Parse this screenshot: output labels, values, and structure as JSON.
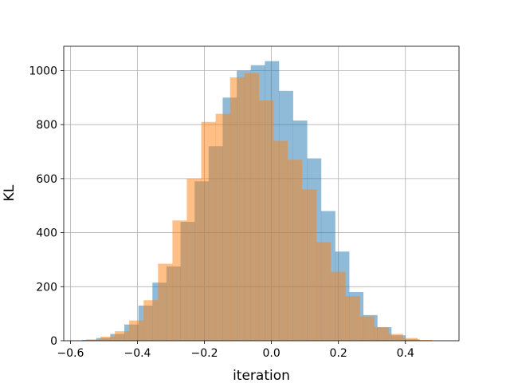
{
  "chart_data": {
    "type": "bar",
    "subtype": "overlapping-histogram",
    "title": "",
    "xlabel": "iteration",
    "ylabel": "KL",
    "xlim": [
      -0.62,
      0.56
    ],
    "ylim": [
      0,
      1090
    ],
    "xticks": [
      -0.6,
      -0.4,
      -0.2,
      0.0,
      0.2,
      0.4
    ],
    "xtick_labels": [
      "−0.6",
      "−0.4",
      "−0.2",
      "0.0",
      "0.2",
      "0.4"
    ],
    "yticks": [
      0,
      200,
      400,
      600,
      800,
      1000
    ],
    "ytick_labels": [
      "0",
      "200",
      "400",
      "600",
      "800",
      "1000"
    ],
    "grid": true,
    "legend": "none",
    "series": [
      {
        "color": "#1f77b4",
        "alpha": 0.5,
        "bin_start": -0.565,
        "bin_width": 0.04195,
        "counts": [
          3,
          10,
          25,
          60,
          130,
          215,
          275,
          440,
          590,
          720,
          900,
          1000,
          1020,
          1035,
          925,
          815,
          675,
          480,
          330,
          180,
          95,
          50,
          20,
          5
        ]
      },
      {
        "color": "#ff7f0e",
        "alpha": 0.5,
        "bin_start": -0.5535,
        "bin_width": 0.043,
        "counts": [
          5,
          15,
          35,
          75,
          150,
          285,
          445,
          600,
          810,
          840,
          975,
          990,
          890,
          740,
          670,
          560,
          365,
          255,
          165,
          90,
          50,
          25,
          10,
          3
        ]
      }
    ]
  }
}
